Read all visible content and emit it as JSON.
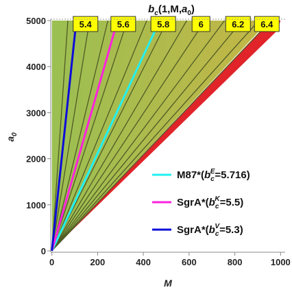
{
  "chart_data": {
    "type": "contour",
    "title": {
      "main": "b",
      "sub": "c",
      "args_prefix": "(1,M,",
      "args_var": "a",
      "args_var_sub": "0",
      "args_suffix": ")"
    },
    "xlabel": "M",
    "ylabel": {
      "main": "a",
      "sub": "0"
    },
    "xlim": [
      -5,
      1020
    ],
    "ylim": [
      -30,
      5030
    ],
    "xticks": [
      0,
      200,
      400,
      600,
      800,
      1000
    ],
    "yticks": [
      0,
      1000,
      2000,
      3000,
      4000,
      5000
    ],
    "grid": false,
    "colors": {
      "fill_left": "#9bbf52",
      "fill_right": "#c4b646",
      "contour": "#4f5a25",
      "excluded": "#e0242a",
      "tag_fill": "#ffff00"
    },
    "contours": [
      {
        "label": "5.4",
        "m_at_top": 165
      },
      {
        "label": "5.6",
        "m_at_top": 330
      },
      {
        "label": "5.8",
        "m_at_top": 505
      },
      {
        "label": "6",
        "m_at_top": 670
      },
      {
        "label": "6.2",
        "m_at_top": 832
      },
      {
        "label": "6.4",
        "m_at_top": 958
      }
    ],
    "extra_contour_slopes_m_at_top": [
      70,
      245,
      415,
      590,
      755,
      905
    ],
    "filled_region_boundary": [
      [
        0,
        0
      ],
      [
        950,
        5000
      ]
    ],
    "excluded_region": [
      [
        15,
        90
      ],
      [
        985,
        4780
      ],
      [
        1000,
        5000
      ],
      [
        955,
        5000
      ]
    ],
    "series": [
      {
        "name": "M87*",
        "label_super": "E",
        "value": "5.716",
        "color": "#22f0f0",
        "points": [
          [
            0,
            0
          ],
          [
            472,
            5000
          ]
        ]
      },
      {
        "name": "SgrA*",
        "label_super": "K",
        "value": "5.5",
        "color": "#ff22dd",
        "points": [
          [
            0,
            0
          ],
          [
            287,
            5000
          ]
        ]
      },
      {
        "name": "SgrA*",
        "label_super": "V",
        "value": "5.3",
        "color": "#0c0cd8",
        "points": [
          [
            0,
            0
          ],
          [
            107,
            5000
          ]
        ]
      }
    ],
    "legend_position": "lower-right"
  }
}
